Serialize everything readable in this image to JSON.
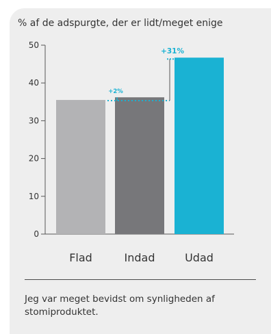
{
  "chart_data": {
    "type": "bar",
    "title": "% af de adspurgte, der er lidt/meget enige",
    "categories": [
      "Flad",
      "Indad",
      "Udad"
    ],
    "values": [
      35.5,
      36.2,
      46.7
    ],
    "ylim": [
      0,
      50
    ],
    "yticks": [
      0,
      10,
      20,
      30,
      40,
      50
    ],
    "xlabel": "",
    "ylabel": "",
    "grid": false,
    "colors": [
      "#b3b3b5",
      "#77777a",
      "#1ab2d3"
    ],
    "annotations": [
      {
        "label": "+2%",
        "from_category": "Flad",
        "to_category": "Indad",
        "color": "#1ab2d3"
      },
      {
        "label": "+31%",
        "from_category": "Flad",
        "to_category": "Udad",
        "color": "#1ab2d3"
      }
    ]
  },
  "footnote": "Jeg var meget bevidst om synligheden af stomiproduktet."
}
